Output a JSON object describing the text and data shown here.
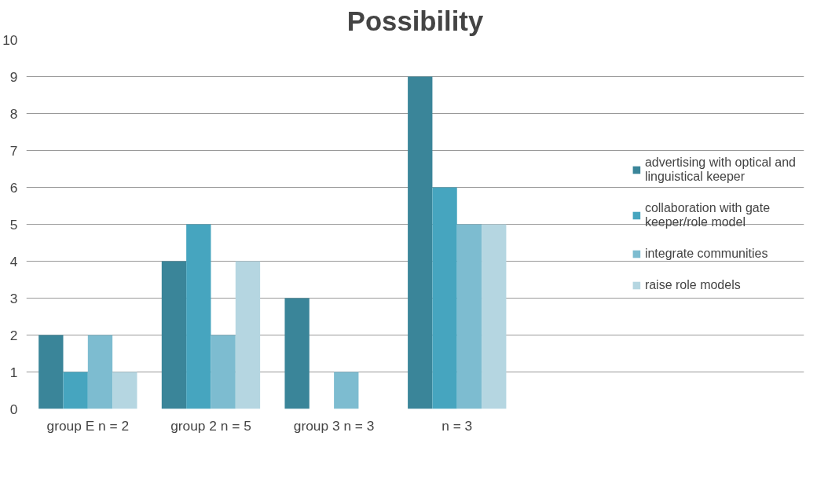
{
  "chart_data": {
    "type": "bar",
    "title": "Possibility",
    "categories": [
      "group E n = 2",
      "group 2 n = 5",
      "group 3 n = 3",
      "n = 3"
    ],
    "series": [
      {
        "name": "advertising with optical and linguistical keeper",
        "color": "#3a8599",
        "values": [
          2,
          4,
          3,
          9
        ]
      },
      {
        "name": "collaboration with gate keeper/role model",
        "color": "#46a5bf",
        "values": [
          1,
          5,
          0,
          6
        ]
      },
      {
        "name": "integrate communities",
        "color": "#7dbcd0",
        "values": [
          2,
          2,
          1,
          5
        ]
      },
      {
        "name": "raise role models",
        "color": "#b5d6e1",
        "values": [
          1,
          4,
          0,
          5
        ]
      }
    ],
    "ylim": [
      0,
      10
    ],
    "yticks": [
      0,
      1,
      2,
      3,
      4,
      5,
      6,
      7,
      8,
      9,
      10
    ],
    "grid": "y",
    "legend": "right"
  }
}
